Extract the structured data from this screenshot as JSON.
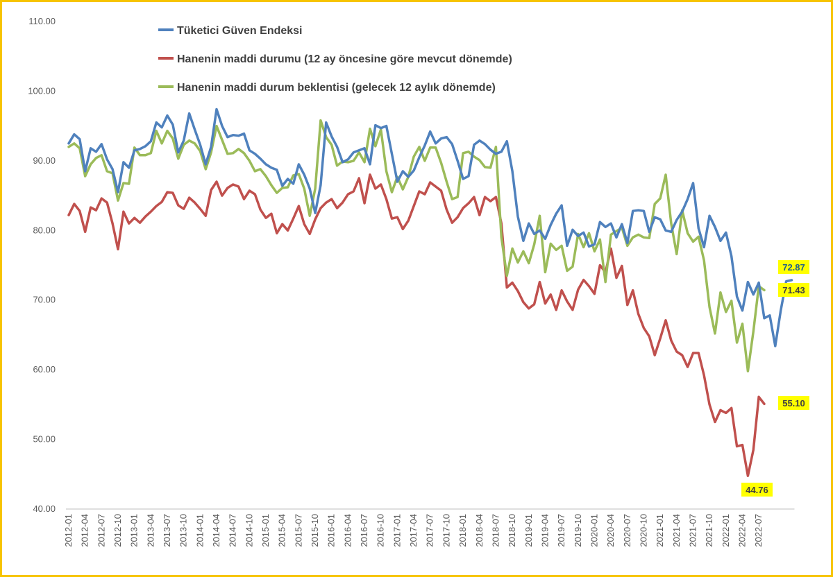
{
  "chart_data": {
    "type": "line",
    "ylim": [
      40,
      110
    ],
    "y_ticks": [
      "40.00",
      "50.00",
      "60.00",
      "70.00",
      "80.00",
      "90.00",
      "100.00",
      "110.00"
    ],
    "x_tick_labels": [
      "2012-01",
      "2012-04",
      "2012-07",
      "2012-10",
      "2013-01",
      "2013-04",
      "2013-07",
      "2013-10",
      "2014-01",
      "2014-04",
      "2014-07",
      "2014-10",
      "2015-01",
      "2015-04",
      "2015-07",
      "2015-10",
      "2016-01",
      "2016-04",
      "2016-07",
      "2016-10",
      "2017-01",
      "2017-04",
      "2017-07",
      "2017-10",
      "2018-01",
      "2018-04",
      "2018-07",
      "2018-10",
      "2019-01",
      "2019-04",
      "2019-07",
      "2019-10",
      "2020-01",
      "2020-04",
      "2020-07",
      "2020-10",
      "2021-01",
      "2021-04",
      "2021-07",
      "2021-10",
      "2022-01",
      "2022-04",
      "2022-07"
    ],
    "grid": "none",
    "legend": "top-left",
    "series": [
      {
        "name": "Tüketici Güven Endeksi",
        "color": "#4f81bd",
        "values": [
          92.5,
          93.8,
          93.1,
          88.5,
          91.8,
          91.3,
          92.4,
          90.2,
          88.8,
          85.5,
          89.8,
          89.0,
          91.5,
          91.7,
          92.1,
          92.8,
          95.5,
          94.8,
          96.5,
          95.2,
          91.2,
          92.9,
          96.8,
          94.5,
          92.3,
          89.5,
          92.0,
          97.4,
          95.0,
          93.4,
          93.7,
          93.6,
          93.9,
          91.5,
          91.0,
          90.3,
          89.5,
          89.0,
          88.7,
          86.4,
          87.4,
          86.7,
          89.5,
          88.0,
          86.0,
          82.5,
          86.5,
          95.5,
          93.5,
          92.0,
          89.8,
          90.2,
          91.2,
          91.5,
          91.8,
          89.5,
          95.1,
          94.7,
          95.0,
          91.0,
          87.0,
          88.5,
          87.7,
          88.6,
          90.5,
          92.2,
          94.2,
          92.5,
          93.2,
          93.4,
          92.4,
          90.0,
          87.4,
          87.8,
          92.3,
          92.9,
          92.4,
          91.6,
          91.0,
          91.3,
          92.8,
          88.5,
          82.0,
          78.5,
          81.0,
          79.5,
          80.0,
          78.8,
          80.8,
          82.4,
          83.6,
          77.8,
          80.1,
          79.2,
          79.7,
          77.7,
          78.0,
          81.2,
          80.5,
          81.0,
          79.0,
          80.9,
          78.2,
          82.8,
          82.9,
          82.8,
          79.8,
          81.9,
          81.6,
          80.0,
          79.8,
          81.5,
          82.7,
          84.5,
          86.8,
          80.3,
          77.6,
          82.1,
          80.5,
          78.5,
          79.7,
          76.3,
          70.5,
          68.5,
          72.6,
          70.8,
          72.5,
          67.4,
          67.8,
          63.4,
          68.5,
          72.7,
          72.87
        ]
      },
      {
        "name": "Hanenin maddi durumu (12 ay öncesine göre mevcut dönemde)",
        "color": "#c0504d",
        "values": [
          82.2,
          83.8,
          82.8,
          79.8,
          83.3,
          82.9,
          84.6,
          84.0,
          81.0,
          77.3,
          82.7,
          81.0,
          81.8,
          81.1,
          82.0,
          82.7,
          83.5,
          84.1,
          85.5,
          85.4,
          83.6,
          83.1,
          84.7,
          84.0,
          83.1,
          82.1,
          85.8,
          87.0,
          85.0,
          86.1,
          86.6,
          86.3,
          84.5,
          85.7,
          85.2,
          83.0,
          81.8,
          82.4,
          79.6,
          80.9,
          80.0,
          81.7,
          83.5,
          80.9,
          79.5,
          81.6,
          83.2,
          84.0,
          84.5,
          83.2,
          84.0,
          85.2,
          85.6,
          87.5,
          83.9,
          88.0,
          86.0,
          86.6,
          84.5,
          81.7,
          81.9,
          80.2,
          81.4,
          83.5,
          85.6,
          85.2,
          86.9,
          86.3,
          85.7,
          83.0,
          81.1,
          81.9,
          83.2,
          83.9,
          84.8,
          82.2,
          84.8,
          84.2,
          84.8,
          81.0,
          71.8,
          72.5,
          71.3,
          69.7,
          68.8,
          69.4,
          72.6,
          69.5,
          70.8,
          68.6,
          71.4,
          69.8,
          68.6,
          71.5,
          72.9,
          72.0,
          70.9,
          75.0,
          74.0,
          77.4,
          73.2,
          74.9,
          69.3,
          71.4,
          68.0,
          66.0,
          64.8,
          62.1,
          64.5,
          67.1,
          64.2,
          62.6,
          62.1,
          60.4,
          62.4,
          62.4,
          59.2,
          55.0,
          52.5,
          54.2,
          53.8,
          54.5,
          49.0,
          49.2,
          44.76,
          48.5,
          56.1,
          55.1
        ]
      },
      {
        "name": "Hanenin maddi durum beklentisi (gelecek 12 aylık dönemde)",
        "color": "#9bbb59",
        "values": [
          92.0,
          92.5,
          91.8,
          87.8,
          89.5,
          90.4,
          90.8,
          88.5,
          88.2,
          84.3,
          86.8,
          86.7,
          91.9,
          90.8,
          90.8,
          91.1,
          94.3,
          92.5,
          94.3,
          93.2,
          90.3,
          92.3,
          92.9,
          92.5,
          91.4,
          88.8,
          91.2,
          95.0,
          93.0,
          91.0,
          91.1,
          91.7,
          91.1,
          90.0,
          88.5,
          88.8,
          87.8,
          86.5,
          85.4,
          86.1,
          86.2,
          87.9,
          88.1,
          86.0,
          82.1,
          86.0,
          95.8,
          93.4,
          92.3,
          89.3,
          89.9,
          89.8,
          90.0,
          91.2,
          89.8,
          94.6,
          92.1,
          94.5,
          88.5,
          85.5,
          87.7,
          85.9,
          87.7,
          90.6,
          92.0,
          90.0,
          91.9,
          91.9,
          89.7,
          87.0,
          84.5,
          84.8,
          91.1,
          91.3,
          90.6,
          90.1,
          89.1,
          89.0,
          92.0,
          79.0,
          73.5,
          77.4,
          75.4,
          77.0,
          75.3,
          78.0,
          82.1,
          74.0,
          78.1,
          77.2,
          77.8,
          74.2,
          74.8,
          79.5,
          77.6,
          79.6,
          77.0,
          78.7,
          72.6,
          79.4,
          79.9,
          80.4,
          77.8,
          79.0,
          79.4,
          79.0,
          78.9,
          83.8,
          84.6,
          88.0,
          81.0,
          76.6,
          82.9,
          79.6,
          78.4,
          79.1,
          75.7,
          69.0,
          65.2,
          71.1,
          68.3,
          69.9,
          63.9,
          66.6,
          59.8,
          65.5,
          72.0,
          71.43
        ]
      }
    ],
    "callouts": {
      "tuketici_end": "72.87",
      "beklenti_end": "71.43",
      "mevcut_end": "55.10",
      "mevcut_min": "44.76"
    }
  }
}
